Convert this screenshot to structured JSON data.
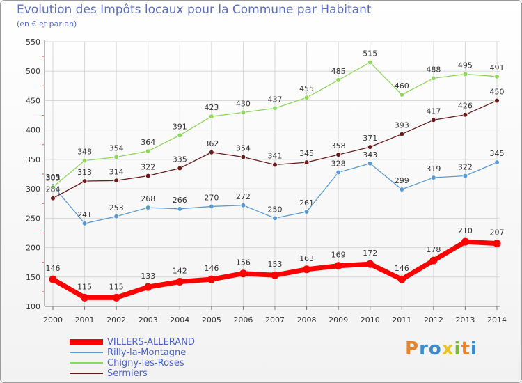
{
  "title": "Evolution des Impôts locaux pour la Commune par Habitant",
  "subtitle": "(en € et par an)",
  "logo": {
    "text": "Proxiti",
    "colors": [
      "#e8832a",
      "#3a8ad0",
      "#3a8ad0",
      "#e8c22a",
      "#7ab83a",
      "#e8832a",
      "#3a8ad0"
    ]
  },
  "chart_data": {
    "type": "line",
    "title": "Evolution des Impôts locaux pour la Commune par Habitant",
    "subtitle": "(en € et par an)",
    "x": [
      2000,
      2001,
      2002,
      2003,
      2004,
      2005,
      2006,
      2007,
      2008,
      2009,
      2010,
      2011,
      2012,
      2013,
      2014
    ],
    "ylim": [
      100,
      550
    ],
    "yticks": [
      100,
      150,
      200,
      250,
      300,
      350,
      400,
      450,
      500,
      550
    ],
    "grid": true,
    "legend": "bottom-left",
    "series": [
      {
        "name": "VILLERS-ALLERAND",
        "color": "#ff0000",
        "emphasis": true,
        "values": [
          146,
          115,
          115,
          133,
          142,
          146,
          156,
          153,
          163,
          169,
          172,
          146,
          178,
          210,
          207
        ]
      },
      {
        "name": "Rilly-la-Montagne",
        "color": "#5b9bd5",
        "emphasis": false,
        "values": [
          305,
          241,
          253,
          268,
          266,
          270,
          272,
          250,
          261,
          328,
          343,
          299,
          319,
          322,
          345
        ]
      },
      {
        "name": "Chigny-les-Roses",
        "color": "#8fd65c",
        "emphasis": false,
        "values": [
          303,
          348,
          354,
          364,
          391,
          423,
          430,
          437,
          455,
          485,
          515,
          460,
          488,
          495,
          491
        ]
      },
      {
        "name": "Sermiers",
        "color": "#6b1a1a",
        "emphasis": false,
        "values": [
          284,
          313,
          314,
          322,
          335,
          362,
          354,
          341,
          345,
          358,
          371,
          393,
          417,
          426,
          450
        ]
      }
    ]
  }
}
